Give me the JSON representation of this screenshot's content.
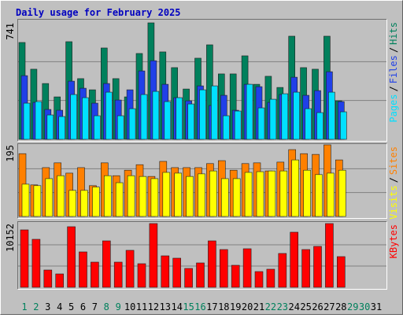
{
  "chart_data": {
    "type": "bar",
    "title": "Daily usage for February 2025",
    "categories": [
      "1",
      "2",
      "3",
      "4",
      "5",
      "6",
      "7",
      "8",
      "9",
      "10",
      "11",
      "12",
      "13",
      "14",
      "15",
      "16",
      "17",
      "18",
      "19",
      "20",
      "21",
      "22",
      "23",
      "24",
      "25",
      "26",
      "27",
      "28",
      "29",
      "30",
      "31"
    ],
    "highlight_categories": [
      0,
      1,
      7,
      8,
      14,
      15,
      21,
      22,
      28,
      29
    ],
    "highlight_color": "#00805c",
    "legend_separator": "/",
    "grid": true,
    "panels": [
      {
        "ylim": [
          0,
          741
        ],
        "yticks": [
          741
        ],
        "series": [
          {
            "name": "Hits",
            "color": "#00805c",
            "values": [
              616,
              446,
              355,
              270,
              621,
              386,
              315,
              581,
              386,
              270,
              546,
              741,
              556,
              456,
              320,
              516,
              601,
              416,
              416,
              531,
              350,
              401,
              330,
              656,
              456,
              446,
              656,
              245,
              null,
              null,
              null
            ]
          },
          {
            "name": "Files",
            "color": "#2040e8",
            "values": [
              405,
              235,
              190,
              185,
              370,
              325,
              230,
              355,
              250,
              315,
              435,
              500,
              350,
              265,
              245,
              340,
              215,
              280,
              185,
              350,
              335,
              235,
              285,
              395,
              280,
              310,
              430,
              240,
              null,
              null,
              null
            ]
          },
          {
            "name": "Pages",
            "color": "#00e0ff",
            "values": [
              230,
              240,
              155,
              145,
              285,
              265,
              150,
              300,
              150,
              195,
              285,
              305,
              240,
              265,
              225,
              315,
              340,
              150,
              180,
              350,
              200,
              255,
              290,
              300,
              195,
              170,
              300,
              175,
              null,
              null,
              null
            ]
          }
        ]
      },
      {
        "ylim": [
          0,
          195
        ],
        "yticks": [
          195
        ],
        "series": [
          {
            "name": "Sites",
            "color": "#ff8000",
            "values": [
              171,
              86,
              133,
              146,
              118,
              133,
              84,
              146,
              111,
              126,
              141,
              109,
              150,
              133,
              133,
              133,
              144,
              152,
              126,
              144,
              146,
              124,
              148,
              182,
              171,
              169,
              195,
              154,
              null,
              null,
              null
            ]
          },
          {
            "name": "Visits",
            "color": "#ffff00",
            "values": [
              88,
              84,
              103,
              111,
              71,
              71,
              80,
              111,
              92,
              111,
              109,
              103,
              120,
              118,
              109,
              116,
              124,
              103,
              103,
              120,
              122,
              124,
              124,
              154,
              126,
              114,
              118,
              126,
              null,
              null,
              null
            ]
          }
        ]
      },
      {
        "ylim": [
          0,
          10152
        ],
        "yticks": [
          10152
        ],
        "series": [
          {
            "name": "KBytes",
            "color": "#ff0000",
            "values": [
              9148,
              7645,
              2757,
              2131,
              9650,
              5640,
              4011,
              7395,
              4011,
              5891,
              3760,
              10152,
              5013,
              4637,
              3008,
              3885,
              7395,
              6016,
              3509,
              6142,
              2507,
              2883,
              5390,
              8774,
              6016,
              6517,
              10152,
              4888,
              null,
              null,
              null
            ]
          }
        ]
      }
    ]
  }
}
